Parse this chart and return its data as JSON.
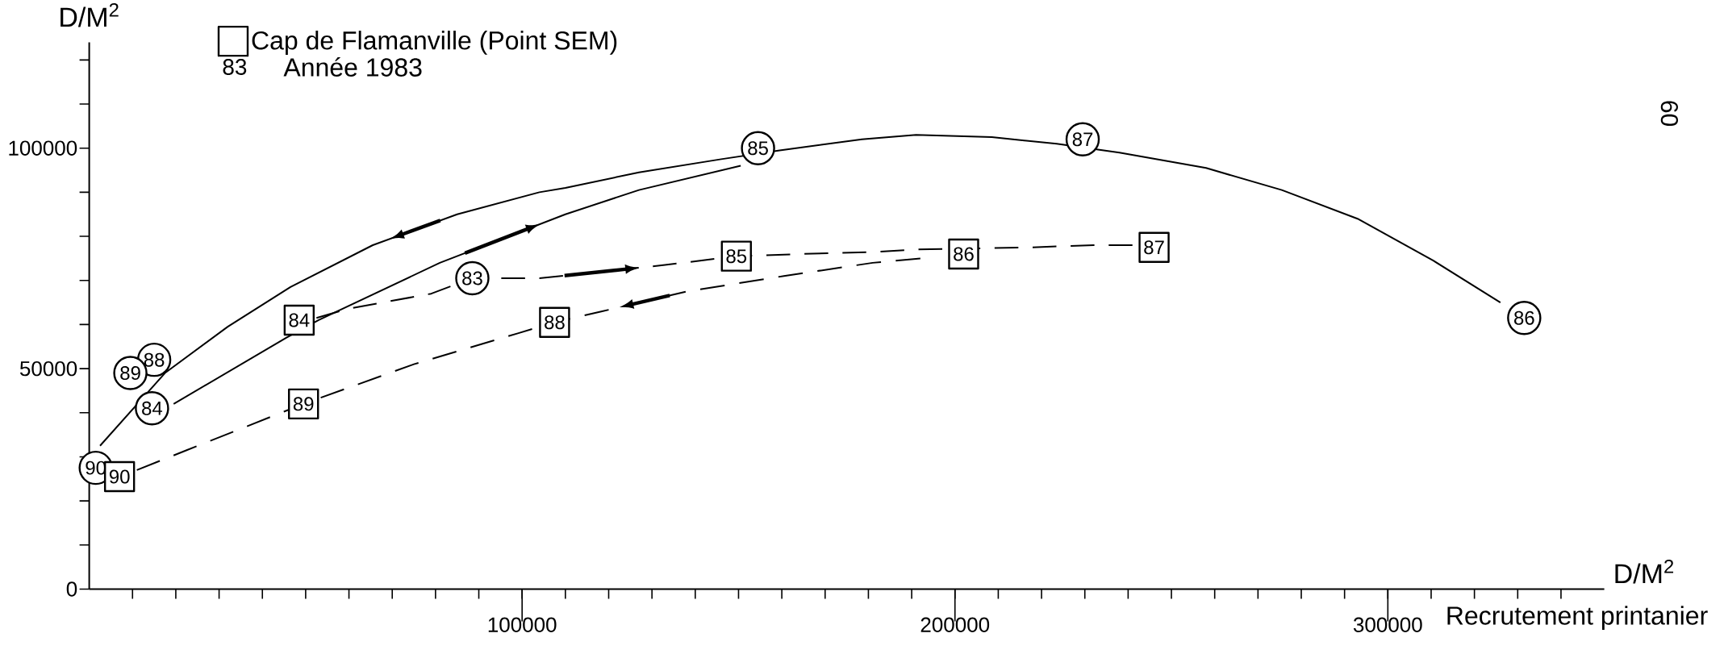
{
  "chart_data": {
    "type": "scatter",
    "xlabel": "D/M$^{2}$",
    "ylabel": "D/M$^{2}$",
    "annotations": [
      "Recrutement printanier",
      "83",
      "Année 1983",
      "60",
      {
        "text": "83",
        "x": 88500,
        "y": 70500
      },
      {
        "text": "84",
        "x": 14500,
        "y": 41000
      },
      {
        "text": "85",
        "x": 154500,
        "y": 100000
      },
      {
        "text": "86",
        "x": 331500,
        "y": 61500
      },
      {
        "text": "87",
        "x": 229500,
        "y": 102000
      },
      {
        "text": "88",
        "x": 15000,
        "y": 52000
      },
      {
        "text": "89",
        "x": 9500,
        "y": 49000
      },
      {
        "text": "90",
        "x": 1500,
        "y": 27500
      },
      {
        "text": "84",
        "x": 48500,
        "y": 61000
      },
      {
        "text": "85",
        "x": 149500,
        "y": 75500
      },
      {
        "text": "86",
        "x": 202000,
        "y": 76000
      },
      {
        "text": "87",
        "x": 246000,
        "y": 77500
      },
      {
        "text": "88",
        "x": 107500,
        "y": 60500
      },
      {
        "text": "89",
        "x": 49500,
        "y": 42000
      },
      {
        "text": "90",
        "x": 7000,
        "y": 25500
      }
    ],
    "xlim": [
      0,
      350000
    ],
    "ylim": [
      0,
      124000
    ],
    "xticks": [
      {
        "value": 10000,
        "label": null
      },
      {
        "value": 20000,
        "label": null
      },
      {
        "value": 30000,
        "label": null
      },
      {
        "value": 40000,
        "label": null
      },
      {
        "value": 50000,
        "label": null
      },
      {
        "value": 60000,
        "label": null
      },
      {
        "value": 70000,
        "label": null
      },
      {
        "value": 80000,
        "label": null
      },
      {
        "value": 90000,
        "label": null
      },
      100000,
      {
        "value": 110000,
        "label": null
      },
      {
        "value": 120000,
        "label": null
      },
      {
        "value": 130000,
        "label": null
      },
      {
        "value": 140000,
        "label": null
      },
      {
        "value": 150000,
        "label": null
      },
      {
        "value": 160000,
        "label": null
      },
      {
        "value": 170000,
        "label": null
      },
      {
        "value": 180000,
        "label": null
      },
      {
        "value": 190000,
        "label": null
      },
      200000,
      {
        "value": 210000,
        "label": null
      },
      {
        "value": 220000,
        "label": null
      },
      {
        "value": 230000,
        "label": null
      },
      {
        "value": 240000,
        "label": null
      },
      {
        "value": 250000,
        "label": null
      },
      {
        "value": 260000,
        "label": null
      },
      {
        "value": 270000,
        "label": null
      },
      {
        "value": 280000,
        "label": null
      },
      {
        "value": 290000,
        "label": null
      },
      300000,
      {
        "value": 310000,
        "label": null
      },
      {
        "value": 320000,
        "label": null
      },
      {
        "value": 330000,
        "label": null
      },
      {
        "value": 340000,
        "label": null
      }
    ],
    "yticks": [
      0,
      {
        "value": 10000,
        "label": null
      },
      {
        "value": 20000,
        "label": null
      },
      {
        "value": 30000,
        "label": null
      },
      {
        "value": 40000,
        "label": null
      },
      50000,
      {
        "value": 60000,
        "label": null
      },
      {
        "value": 70000,
        "label": null
      },
      {
        "value": 80000,
        "label": null
      },
      {
        "value": 90000,
        "label": null
      },
      100000,
      {
        "value": 110000,
        "label": null
      },
      {
        "value": 120000,
        "label": null
      }
    ],
    "legend": "top left",
    "series": [
      {
        "marker": "circle",
        "color": "#000000",
        "x": [
          88500,
          14500,
          154500,
          331500,
          229500,
          15000,
          9500,
          1500
        ],
        "values": [
          70500,
          41000,
          100000,
          61500,
          102000,
          52000,
          49000,
          27500
        ]
      },
      {
        "marker": "square",
        "name": "Cap de Flamanville (Point SEM)",
        "color": "#000000",
        "x": [
          48500,
          149500,
          202000,
          246000,
          107500,
          49500,
          7000
        ],
        "values": [
          61000,
          75500,
          76000,
          77500,
          60500,
          42000,
          25500
        ]
      },
      {
        "type": "line",
        "marker": "none",
        "line_style": "solid",
        "color": "#000000",
        "x": [
          2500,
          17500,
          32000,
          46500,
          65500,
          85000,
          104000,
          110000,
          127000,
          146000,
          159500,
          178500,
          191000,
          208500,
          223500,
          238000,
          258000,
          275500,
          293000,
          310500,
          326000
        ],
        "values": [
          32500,
          49000,
          59500,
          68500,
          78000,
          85000,
          90000,
          91000,
          94500,
          97500,
          99500,
          102000,
          103000,
          102500,
          101000,
          99000,
          95500,
          90500,
          84000,
          74500,
          65000
        ]
      },
      {
        "type": "line",
        "marker": "none",
        "line_style": "solid",
        "color": "#000000",
        "x": [
          19500,
          45500,
          53000,
          81000,
          110000,
          127000,
          150500
        ],
        "values": [
          42000,
          57000,
          61000,
          74000,
          85000,
          90500,
          96000
        ]
      },
      {
        "type": "line",
        "marker": "none",
        "line_style": "dashed",
        "color": "#000000",
        "x": [
          52500,
          59500,
          79000,
          88500,
          104000,
          133000,
          149500,
          164500,
          182500,
          190500,
          217500,
          232000,
          241000
        ],
        "values": [
          61500,
          63500,
          67000,
          70500,
          70500,
          73500,
          75500,
          76000,
          76500,
          77000,
          77500,
          78000,
          78000
        ]
      },
      {
        "type": "line",
        "marker": "none",
        "line_style": "dashed",
        "color": "#000000",
        "x": [
          11000,
          22500,
          49500,
          75000,
          99000,
          107500,
          118500,
          138000,
          160500,
          181000,
          192000
        ],
        "values": [
          27000,
          31500,
          42000,
          51000,
          58000,
          60500,
          63000,
          67500,
          71000,
          74000,
          75000
        ]
      }
    ]
  }
}
